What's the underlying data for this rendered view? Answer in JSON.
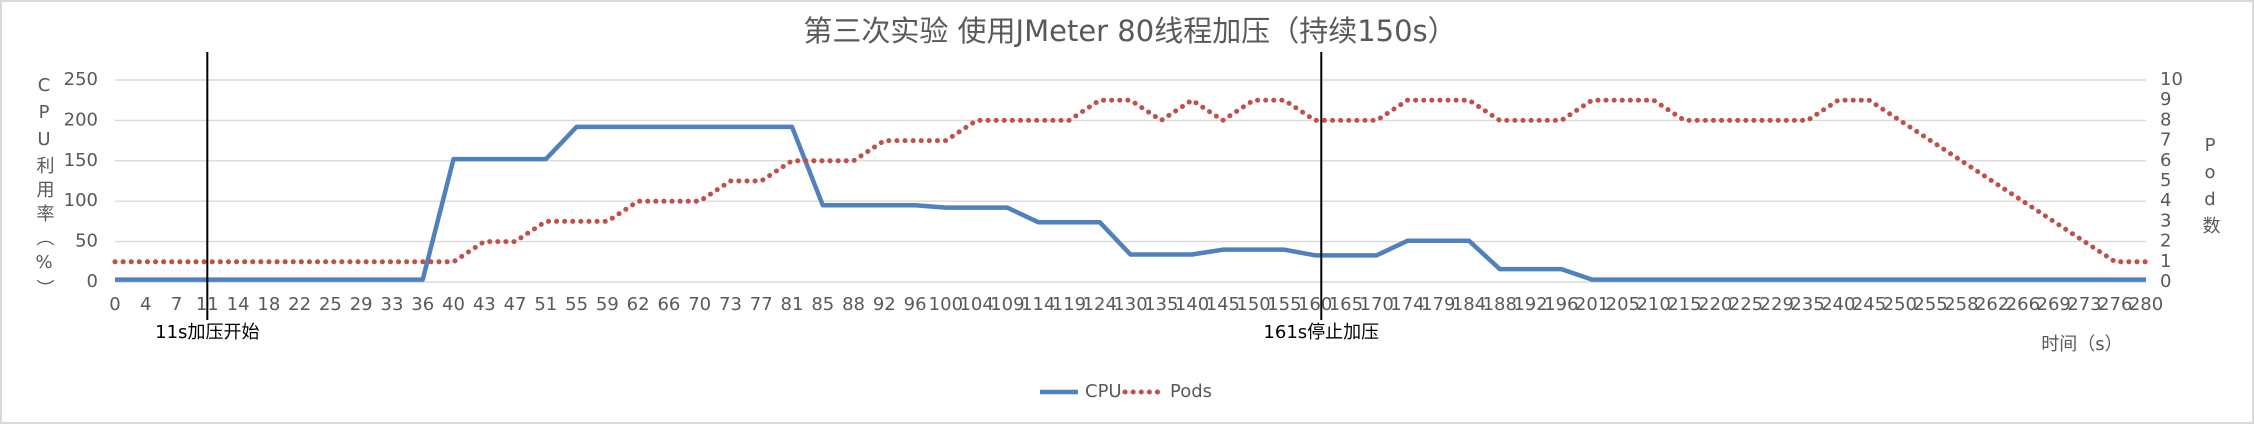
{
  "chart_data": {
    "type": "line",
    "title": "第三次实验 使用JMeter 80线程加压（持续150s）",
    "y_label": "CPU利用率（%）",
    "y2_label": "Pod数",
    "x_label": "时间（s）",
    "categories": [
      0,
      4,
      7,
      11,
      14,
      18,
      22,
      25,
      29,
      33,
      36,
      40,
      43,
      47,
      51,
      55,
      59,
      62,
      66,
      70,
      73,
      77,
      81,
      85,
      88,
      92,
      96,
      100,
      104,
      109,
      114,
      119,
      124,
      130,
      135,
      140,
      145,
      150,
      155,
      160,
      165,
      170,
      174,
      179,
      184,
      188,
      192,
      196,
      201,
      205,
      210,
      215,
      220,
      225,
      229,
      235,
      240,
      245,
      250,
      255,
      258,
      262,
      266,
      269,
      273,
      276,
      280
    ],
    "series": [
      {
        "name": "CPU",
        "color": "#4f81bd",
        "axis": "y",
        "values": [
          3,
          3,
          3,
          3,
          3,
          3,
          3,
          3,
          3,
          3,
          3,
          152,
          152,
          152,
          152,
          192,
          192,
          192,
          192,
          192,
          192,
          192,
          192,
          95,
          95,
          95,
          95,
          92,
          92,
          92,
          74,
          74,
          74,
          34,
          34,
          34,
          40,
          40,
          40,
          33,
          33,
          33,
          51,
          51,
          51,
          16,
          16,
          16,
          3,
          3,
          3,
          3,
          3,
          3,
          3,
          3,
          3,
          3,
          3,
          3,
          3,
          3,
          3,
          3,
          3,
          3,
          3
        ]
      },
      {
        "name": "Pods",
        "color": "#c0504d",
        "axis": "y2",
        "values": [
          1,
          1,
          1,
          1,
          1,
          1,
          1,
          1,
          1,
          1,
          1,
          1,
          2,
          2,
          3,
          3,
          3,
          4,
          4,
          4,
          5,
          5,
          6,
          6,
          6,
          7,
          7,
          7,
          8,
          8,
          8,
          8,
          9,
          9,
          8,
          9,
          8,
          9,
          9,
          8,
          8,
          8,
          9,
          9,
          9,
          8,
          8,
          8,
          9,
          9,
          9,
          8,
          8,
          8,
          8,
          8,
          9,
          9,
          8,
          7,
          6,
          5,
          4,
          3,
          2,
          1,
          1
        ]
      }
    ],
    "ylim": [
      0,
      250
    ],
    "yticks": [
      0,
      50,
      100,
      150,
      200,
      250
    ],
    "y2lim": [
      0,
      10
    ],
    "y2ticks": [
      0,
      1,
      2,
      3,
      4,
      5,
      6,
      7,
      8,
      9,
      10
    ],
    "grid": true,
    "legend": "bottom",
    "annotations": [
      {
        "x": 11,
        "text": "11s加压开始"
      },
      {
        "x": 161,
        "text": "161s停止加压"
      }
    ]
  }
}
